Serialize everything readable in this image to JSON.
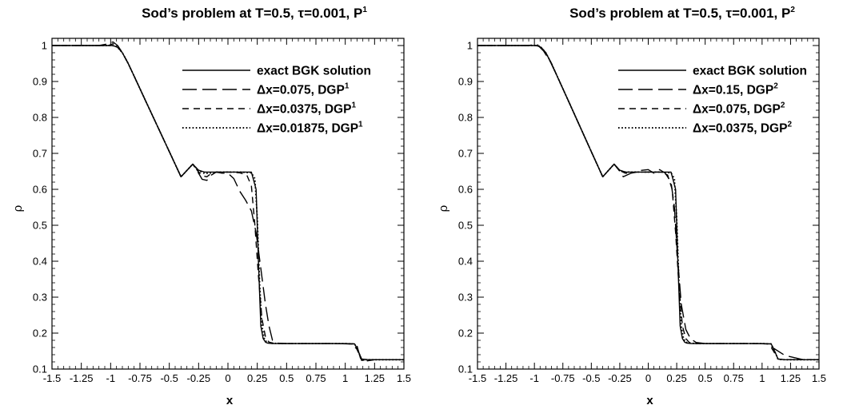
{
  "chart_data": [
    {
      "type": "line",
      "title": {
        "main": "Sod’s problem at T=0.5, τ=0.001, P",
        "sup": "1"
      },
      "xlabel": "x",
      "ylabel": "ρ",
      "xlim": [
        -1.5,
        1.5
      ],
      "ylim": [
        0.1,
        1.02
      ],
      "xticks": [
        -1.5,
        -1.25,
        -1,
        -0.75,
        -0.5,
        -0.25,
        0,
        0.25,
        0.5,
        0.75,
        1,
        1.25,
        1.5
      ],
      "xtick_labels": [
        "-1.5",
        "-1.25",
        "-1",
        "-0.75",
        "-0.5",
        "-0.25",
        "0",
        "0.25",
        "0.5",
        "0.75",
        "1",
        "1.25",
        "1.5"
      ],
      "yticks": [
        0.1,
        0.2,
        0.3,
        0.4,
        0.5,
        0.6,
        0.7,
        0.8,
        0.9,
        1
      ],
      "ytick_labels": [
        "0.1",
        "0.2",
        "0.3",
        "0.4",
        "0.5",
        "0.6",
        "0.7",
        "0.8",
        "0.9",
        "1"
      ],
      "legend_position": "top-right",
      "series": [
        {
          "name": "exact BGK solution",
          "sup": "",
          "style": "solid",
          "x": [
            -1.5,
            -0.98,
            -0.94,
            -0.9,
            -0.85,
            -0.8,
            -0.7,
            -0.6,
            -0.5,
            -0.4,
            -0.3,
            -0.25,
            -0.2,
            -0.1,
            0.0,
            0.1,
            0.2,
            0.24,
            0.26,
            0.28,
            0.3,
            0.32,
            0.34,
            0.38,
            0.45,
            0.6,
            0.8,
            1.0,
            1.08,
            1.11,
            1.14,
            1.2,
            1.5
          ],
          "y": [
            1.0,
            1.0,
            0.995,
            0.98,
            0.95,
            0.915,
            0.845,
            0.775,
            0.705,
            0.635,
            0.67,
            0.653,
            0.648,
            0.648,
            0.648,
            0.648,
            0.648,
            0.6,
            0.4,
            0.22,
            0.185,
            0.175,
            0.172,
            0.171,
            0.171,
            0.171,
            0.171,
            0.171,
            0.17,
            0.15,
            0.128,
            0.126,
            0.126
          ]
        },
        {
          "name": "Δx=0.075, DGP",
          "sup": "1",
          "style": "long-dash",
          "x": [
            -1.5,
            -1.1,
            -1.02,
            -0.98,
            -0.94,
            -0.9,
            -0.85,
            -0.8,
            -0.7,
            -0.6,
            -0.5,
            -0.4,
            -0.3,
            -0.26,
            -0.22,
            -0.18,
            -0.14,
            -0.1,
            -0.05,
            0.0,
            0.05,
            0.1,
            0.15,
            0.2,
            0.24,
            0.28,
            0.32,
            0.35,
            0.38,
            0.42,
            0.5,
            0.7,
            0.9,
            1.05,
            1.1,
            1.13,
            1.17,
            1.25,
            1.5
          ],
          "y": [
            1.0,
            1.0,
            1.005,
            1.01,
            1.0,
            0.98,
            0.95,
            0.915,
            0.845,
            0.775,
            0.705,
            0.635,
            0.67,
            0.65,
            0.628,
            0.625,
            0.64,
            0.648,
            0.645,
            0.645,
            0.63,
            0.595,
            0.57,
            0.54,
            0.48,
            0.38,
            0.28,
            0.22,
            0.18,
            0.172,
            0.171,
            0.171,
            0.171,
            0.17,
            0.165,
            0.13,
            0.122,
            0.126,
            0.126
          ]
        },
        {
          "name": "Δx=0.0375, DGP",
          "sup": "1",
          "style": "short-dash",
          "x": [
            -1.5,
            -1.02,
            -0.98,
            -0.94,
            -0.9,
            -0.85,
            -0.8,
            -0.7,
            -0.6,
            -0.5,
            -0.4,
            -0.3,
            -0.26,
            -0.22,
            -0.18,
            -0.14,
            -0.1,
            0.0,
            0.1,
            0.16,
            0.2,
            0.23,
            0.26,
            0.29,
            0.32,
            0.35,
            0.4,
            0.6,
            0.9,
            1.06,
            1.1,
            1.14,
            1.2,
            1.5
          ],
          "y": [
            1.0,
            1.0,
            1.005,
            0.998,
            0.98,
            0.95,
            0.915,
            0.845,
            0.775,
            0.705,
            0.635,
            0.67,
            0.652,
            0.638,
            0.635,
            0.645,
            0.648,
            0.648,
            0.646,
            0.64,
            0.61,
            0.5,
            0.36,
            0.24,
            0.19,
            0.175,
            0.171,
            0.171,
            0.171,
            0.17,
            0.155,
            0.124,
            0.126,
            0.126
          ]
        },
        {
          "name": "Δx=0.01875, DGP",
          "sup": "1",
          "style": "dotted",
          "x": [
            -1.5,
            -0.99,
            -0.95,
            -0.9,
            -0.85,
            -0.8,
            -0.7,
            -0.6,
            -0.5,
            -0.4,
            -0.3,
            -0.25,
            -0.2,
            -0.15,
            -0.1,
            0.0,
            0.1,
            0.2,
            0.23,
            0.25,
            0.27,
            0.29,
            0.31,
            0.33,
            0.36,
            0.45,
            0.7,
            1.0,
            1.08,
            1.11,
            1.14,
            1.2,
            1.5
          ],
          "y": [
            1.0,
            1.0,
            0.998,
            0.98,
            0.95,
            0.915,
            0.845,
            0.775,
            0.705,
            0.635,
            0.67,
            0.652,
            0.644,
            0.645,
            0.648,
            0.648,
            0.648,
            0.646,
            0.63,
            0.52,
            0.34,
            0.22,
            0.185,
            0.175,
            0.172,
            0.171,
            0.171,
            0.171,
            0.17,
            0.15,
            0.126,
            0.126,
            0.126
          ]
        }
      ]
    },
    {
      "type": "line",
      "title": {
        "main": "Sod’s problem at T=0.5, τ=0.001, P",
        "sup": "2"
      },
      "xlabel": "x",
      "ylabel": "ρ",
      "xlim": [
        -1.5,
        1.5
      ],
      "ylim": [
        0.1,
        1.02
      ],
      "xticks": [
        -1.5,
        -1.25,
        -1,
        -0.75,
        -0.5,
        -0.25,
        0,
        0.25,
        0.5,
        0.75,
        1,
        1.25,
        1.5
      ],
      "xtick_labels": [
        "-1.5",
        "-1.25",
        "-1",
        "-0.75",
        "-0.5",
        "-0.25",
        "0",
        "0.25",
        "0.5",
        "0.75",
        "1",
        "1.25",
        "1.5"
      ],
      "yticks": [
        0.1,
        0.2,
        0.3,
        0.4,
        0.5,
        0.6,
        0.7,
        0.8,
        0.9,
        1
      ],
      "ytick_labels": [
        "0.1",
        "0.2",
        "0.3",
        "0.4",
        "0.5",
        "0.6",
        "0.7",
        "0.8",
        "0.9",
        "1"
      ],
      "legend_position": "top-right",
      "series": [
        {
          "name": "exact BGK solution",
          "sup": "",
          "style": "solid",
          "x": [
            -1.5,
            -0.98,
            -0.94,
            -0.9,
            -0.85,
            -0.8,
            -0.7,
            -0.6,
            -0.5,
            -0.4,
            -0.3,
            -0.25,
            -0.2,
            -0.1,
            0.0,
            0.1,
            0.2,
            0.24,
            0.26,
            0.28,
            0.3,
            0.32,
            0.34,
            0.38,
            0.45,
            0.6,
            0.8,
            1.0,
            1.08,
            1.11,
            1.14,
            1.2,
            1.5
          ],
          "y": [
            1.0,
            1.0,
            0.995,
            0.98,
            0.95,
            0.915,
            0.845,
            0.775,
            0.705,
            0.635,
            0.67,
            0.653,
            0.648,
            0.648,
            0.648,
            0.648,
            0.648,
            0.6,
            0.4,
            0.22,
            0.185,
            0.175,
            0.172,
            0.171,
            0.171,
            0.171,
            0.171,
            0.171,
            0.17,
            0.15,
            0.128,
            0.126,
            0.126
          ]
        },
        {
          "name": "Δx=0.15, DGP",
          "sup": "2",
          "style": "long-dash",
          "x": [
            -1.5,
            -1.05,
            -0.98,
            -0.92,
            -0.86,
            -0.8,
            -0.7,
            -0.6,
            -0.5,
            -0.4,
            -0.3,
            -0.25,
            -0.22,
            -0.15,
            -0.08,
            0.0,
            0.05,
            0.1,
            0.15,
            0.2,
            0.23,
            0.26,
            0.29,
            0.33,
            0.37,
            0.42,
            0.5,
            0.7,
            0.95,
            1.05,
            1.1,
            1.2,
            1.35,
            1.45,
            1.5
          ],
          "y": [
            1.0,
            1.0,
            1.004,
            0.985,
            0.955,
            0.915,
            0.845,
            0.775,
            0.705,
            0.635,
            0.67,
            0.65,
            0.635,
            0.645,
            0.652,
            0.655,
            0.645,
            0.655,
            0.645,
            0.62,
            0.55,
            0.4,
            0.28,
            0.21,
            0.185,
            0.174,
            0.171,
            0.171,
            0.171,
            0.17,
            0.158,
            0.138,
            0.127,
            0.126,
            0.126
          ]
        },
        {
          "name": "Δx=0.075, DGP",
          "sup": "2",
          "style": "short-dash",
          "x": [
            -1.5,
            -1.0,
            -0.95,
            -0.9,
            -0.85,
            -0.8,
            -0.7,
            -0.6,
            -0.5,
            -0.4,
            -0.3,
            -0.25,
            -0.2,
            -0.15,
            -0.1,
            0.0,
            0.1,
            0.17,
            0.21,
            0.24,
            0.27,
            0.3,
            0.33,
            0.36,
            0.42,
            0.6,
            0.9,
            1.06,
            1.1,
            1.14,
            1.2,
            1.5
          ],
          "y": [
            1.0,
            1.0,
            0.998,
            0.98,
            0.95,
            0.915,
            0.845,
            0.775,
            0.705,
            0.635,
            0.67,
            0.652,
            0.645,
            0.645,
            0.648,
            0.648,
            0.648,
            0.64,
            0.6,
            0.48,
            0.33,
            0.22,
            0.185,
            0.174,
            0.171,
            0.171,
            0.171,
            0.17,
            0.15,
            0.128,
            0.126,
            0.126
          ]
        },
        {
          "name": "Δx=0.0375, DGP",
          "sup": "2",
          "style": "dotted",
          "x": [
            -1.5,
            -0.99,
            -0.95,
            -0.9,
            -0.85,
            -0.8,
            -0.7,
            -0.6,
            -0.5,
            -0.4,
            -0.3,
            -0.25,
            -0.2,
            -0.1,
            0.0,
            0.1,
            0.2,
            0.23,
            0.25,
            0.27,
            0.29,
            0.31,
            0.33,
            0.36,
            0.45,
            0.7,
            1.0,
            1.08,
            1.11,
            1.14,
            1.2,
            1.5
          ],
          "y": [
            1.0,
            1.0,
            0.998,
            0.98,
            0.95,
            0.915,
            0.845,
            0.775,
            0.705,
            0.635,
            0.67,
            0.652,
            0.648,
            0.648,
            0.648,
            0.648,
            0.646,
            0.63,
            0.52,
            0.34,
            0.22,
            0.185,
            0.175,
            0.172,
            0.171,
            0.171,
            0.171,
            0.17,
            0.15,
            0.127,
            0.126,
            0.126
          ]
        }
      ]
    }
  ]
}
